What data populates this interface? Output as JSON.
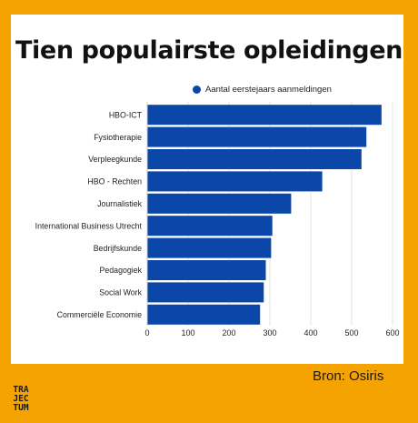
{
  "colors": {
    "background": "#F4A300",
    "bar": "#0A47A9",
    "card": "#FFFFFF"
  },
  "title": "Tien populairste opleidingen",
  "source": "Bron: Osiris",
  "logo": {
    "lines": [
      "TRA",
      "JEC",
      "TUM"
    ]
  },
  "chart_data": {
    "type": "bar",
    "orientation": "horizontal",
    "title": "Tien populairste opleidingen",
    "xlabel": "",
    "ylabel": "",
    "xlim": [
      0,
      600
    ],
    "xticks": [
      "0",
      "100",
      "200",
      "300",
      "400",
      "500",
      "600"
    ],
    "grid": true,
    "legend_position": "top",
    "categories": [
      "HBO-ICT",
      "Fysiotherapie",
      "Verpleegkunde",
      "HBO - Rechten",
      "Journalistiek",
      "International Business Utrecht",
      "Bedrijfskunde",
      "Pedagogiek",
      "Social Work",
      "Commerciële Economie"
    ],
    "series": [
      {
        "name": "Aantal eerstejaars aanmeldingen",
        "values": [
          573,
          536,
          524,
          428,
          352,
          306,
          303,
          290,
          285,
          276
        ]
      }
    ]
  }
}
